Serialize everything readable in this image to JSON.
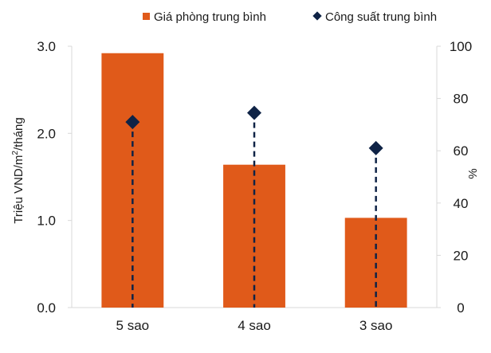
{
  "chart_data": {
    "type": "bar",
    "categories": [
      "5 sao",
      "4 sao",
      "3 sao"
    ],
    "series": [
      {
        "name": "Giá phòng trung bình",
        "kind": "bar",
        "axis": "left",
        "values": [
          2.92,
          1.64,
          1.03
        ]
      },
      {
        "name": "Công suất trung bình",
        "kind": "marker",
        "axis": "right",
        "values": [
          71,
          74.5,
          61
        ]
      }
    ],
    "left_axis": {
      "label_main": "Triệu VND/m",
      "label_sup": "2",
      "label_tail": "/tháng",
      "range": [
        0,
        3
      ],
      "ticks": [
        0,
        1,
        2,
        3
      ],
      "tick_labels": [
        "0.0",
        "1.0",
        "2.0",
        "3.0"
      ]
    },
    "right_axis": {
      "label": "%",
      "range": [
        0,
        100
      ],
      "ticks": [
        0,
        20,
        40,
        60,
        80,
        100
      ],
      "tick_labels": [
        "0",
        "20",
        "40",
        "60",
        "80",
        "100"
      ]
    },
    "legend_position": "top-right",
    "grid": false,
    "colors": {
      "bar": "#e05a1a",
      "marker": "#0f2346",
      "axis": "#d9d9d9"
    }
  }
}
